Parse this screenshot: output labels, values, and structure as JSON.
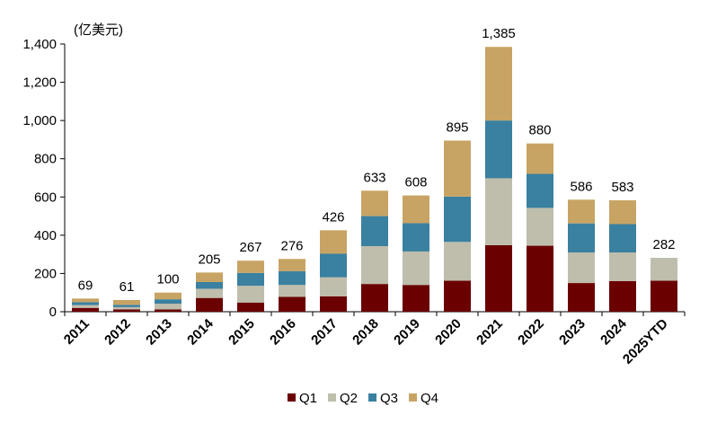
{
  "chart_data": {
    "type": "bar",
    "stacked": true,
    "unit_label": "(亿美元)",
    "title": "",
    "xlabel": "",
    "ylabel": "",
    "ylim": [
      0,
      1400
    ],
    "yticks": [
      0,
      200,
      400,
      600,
      800,
      1000,
      1200,
      1400
    ],
    "ytick_labels": [
      "0",
      "200",
      "400",
      "600",
      "800",
      "1,000",
      "1,200",
      "1,400"
    ],
    "grid": false,
    "legend_position": "bottom",
    "categories": [
      "2011",
      "2012",
      "2013",
      "2014",
      "2015",
      "2016",
      "2017",
      "2018",
      "2019",
      "2020",
      "2021",
      "2022",
      "2023",
      "2024",
      "2025YTD"
    ],
    "series": [
      {
        "name": "Q1",
        "color": "#6b0000",
        "values": [
          20,
          12,
          12,
          72,
          48,
          78,
          80,
          145,
          140,
          162,
          348,
          345,
          150,
          160,
          162
        ]
      },
      {
        "name": "Q2",
        "color": "#bfbdac",
        "values": [
          15,
          12,
          30,
          48,
          88,
          62,
          100,
          198,
          175,
          203,
          350,
          198,
          160,
          150,
          120
        ]
      },
      {
        "name": "Q3",
        "color": "#3a80a0",
        "values": [
          15,
          12,
          23,
          35,
          67,
          72,
          123,
          157,
          148,
          237,
          302,
          178,
          152,
          148,
          0
        ]
      },
      {
        "name": "Q4",
        "color": "#c8a464",
        "values": [
          19,
          25,
          35,
          50,
          64,
          64,
          123,
          133,
          145,
          293,
          385,
          159,
          124,
          125,
          0
        ]
      }
    ],
    "totals": [
      69,
      61,
      100,
      205,
      267,
      276,
      426,
      633,
      608,
      895,
      1385,
      880,
      586,
      583,
      282
    ],
    "total_labels": [
      "69",
      "61",
      "100",
      "205",
      "267",
      "276",
      "426",
      "633",
      "608",
      "895",
      "1,385",
      "880",
      "586",
      "583",
      "282"
    ]
  }
}
